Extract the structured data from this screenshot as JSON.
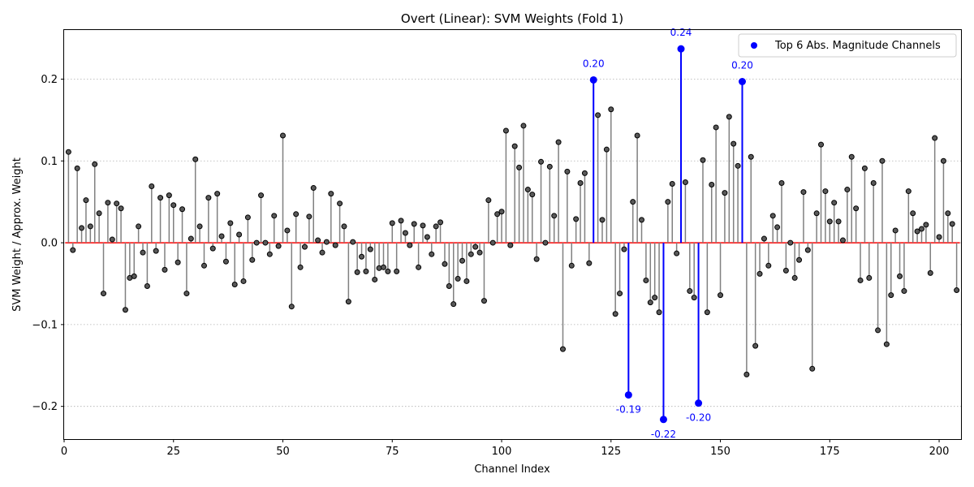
{
  "chart_data": {
    "type": "stem",
    "title": "Overt (Linear): SVM Weights (Fold 1)",
    "xlabel": "Channel Index",
    "ylabel": "SVM Weight / Approx. Weight",
    "xlim": [
      0,
      205
    ],
    "ylim": [
      -0.24,
      0.26
    ],
    "xticks": [
      0,
      25,
      50,
      75,
      100,
      125,
      150,
      175,
      200
    ],
    "yticks": [
      -0.2,
      -0.1,
      0.0,
      0.1,
      0.2
    ],
    "ytick_labels": [
      "−0.2",
      "−0.1",
      "0.0",
      "0.1",
      "0.2"
    ],
    "grid": "y-dotted",
    "legend_position": "top-right",
    "colors": {
      "stem": "#808080",
      "marker_face": "#595959",
      "baseline": "#ff0000",
      "highlight": "#0000ff",
      "grid": "#b0b0b0"
    },
    "legend": [
      {
        "label": "Top 6 Abs. Magnitude Channels",
        "color": "#0000ff"
      }
    ],
    "x": [
      1,
      2,
      3,
      4,
      5,
      6,
      7,
      8,
      9,
      10,
      11,
      12,
      13,
      14,
      15,
      16,
      17,
      18,
      19,
      20,
      21,
      22,
      23,
      24,
      25,
      26,
      27,
      28,
      29,
      30,
      31,
      32,
      33,
      34,
      35,
      36,
      37,
      38,
      39,
      40,
      41,
      42,
      43,
      44,
      45,
      46,
      47,
      48,
      49,
      50,
      51,
      52,
      53,
      54,
      55,
      56,
      57,
      58,
      59,
      60,
      61,
      62,
      63,
      64,
      65,
      66,
      67,
      68,
      69,
      70,
      71,
      72,
      73,
      74,
      75,
      76,
      77,
      78,
      79,
      80,
      81,
      82,
      83,
      84,
      85,
      86,
      87,
      88,
      89,
      90,
      91,
      92,
      93,
      94,
      95,
      96,
      97,
      98,
      99,
      100,
      101,
      102,
      103,
      104,
      105,
      106,
      107,
      108,
      109,
      110,
      111,
      112,
      113,
      114,
      115,
      116,
      117,
      118,
      119,
      120,
      121,
      122,
      123,
      124,
      125,
      126,
      127,
      128,
      129,
      130,
      131,
      132,
      133,
      134,
      135,
      136,
      137,
      138,
      139,
      140,
      141,
      142,
      143,
      144,
      145,
      146,
      147,
      148,
      149,
      150,
      151,
      152,
      153,
      154,
      155,
      156,
      157,
      158,
      159,
      160,
      161,
      162,
      163,
      164,
      165,
      166,
      167,
      168,
      169,
      170,
      171,
      172,
      173,
      174,
      175,
      176,
      177,
      178,
      179,
      180,
      181,
      182,
      183,
      184,
      185,
      186,
      187,
      188,
      189,
      190,
      191,
      192,
      193,
      194,
      195,
      196,
      197,
      198,
      199,
      200,
      201,
      202,
      203,
      204
    ],
    "values": [
      0.111,
      -0.009,
      0.091,
      0.018,
      0.052,
      0.02,
      0.096,
      0.036,
      -0.062,
      0.049,
      0.004,
      0.048,
      0.042,
      -0.082,
      -0.043,
      -0.041,
      0.02,
      -0.012,
      -0.053,
      0.069,
      -0.01,
      0.055,
      -0.033,
      0.058,
      0.046,
      -0.024,
      0.041,
      -0.062,
      0.005,
      0.102,
      0.02,
      -0.028,
      0.055,
      -0.007,
      0.06,
      0.008,
      -0.023,
      0.024,
      -0.051,
      0.01,
      -0.047,
      0.031,
      -0.021,
      0.0,
      0.058,
      0.0,
      -0.014,
      0.033,
      -0.004,
      0.131,
      0.015,
      -0.078,
      0.035,
      -0.03,
      -0.005,
      0.032,
      0.067,
      0.003,
      -0.012,
      0.001,
      0.06,
      -0.003,
      0.048,
      0.02,
      -0.072,
      0.001,
      -0.036,
      -0.017,
      -0.035,
      -0.008,
      -0.045,
      -0.031,
      -0.03,
      -0.035,
      0.024,
      -0.035,
      0.027,
      0.012,
      -0.003,
      0.023,
      -0.03,
      0.021,
      0.007,
      -0.014,
      0.02,
      0.025,
      -0.026,
      -0.053,
      -0.075,
      -0.044,
      -0.022,
      -0.047,
      -0.014,
      -0.005,
      -0.012,
      -0.071,
      0.052,
      0.0,
      0.035,
      0.038,
      0.137,
      -0.003,
      0.118,
      0.092,
      0.143,
      0.065,
      0.059,
      -0.02,
      0.099,
      0.0,
      0.093,
      0.033,
      0.123,
      -0.13,
      0.087,
      -0.028,
      0.029,
      0.073,
      0.085,
      -0.025,
      0.199,
      0.156,
      0.028,
      0.114,
      0.163,
      -0.087,
      -0.062,
      -0.008,
      -0.186,
      0.05,
      0.131,
      0.028,
      -0.046,
      -0.073,
      -0.067,
      -0.085,
      -0.216,
      0.05,
      0.072,
      -0.013,
      0.237,
      0.074,
      -0.059,
      -0.067,
      -0.196,
      0.101,
      -0.085,
      0.071,
      0.141,
      -0.064,
      0.061,
      0.154,
      0.121,
      0.094,
      0.197,
      -0.161,
      0.105,
      -0.126,
      -0.038,
      0.005,
      -0.028,
      0.033,
      0.019,
      0.073,
      -0.034,
      0.0,
      -0.043,
      -0.021,
      0.062,
      -0.009,
      -0.154,
      0.036,
      0.12,
      0.063,
      0.026,
      0.049,
      0.026,
      0.003,
      0.065,
      0.105,
      0.042,
      -0.046,
      0.091,
      -0.043,
      0.073,
      -0.107,
      0.1,
      -0.124,
      -0.064,
      0.015,
      -0.041,
      -0.059,
      0.063,
      0.036,
      0.014,
      0.017,
      0.022,
      -0.037,
      0.128,
      0.007,
      0.1,
      0.036,
      0.023,
      -0.058
    ],
    "highlight": {
      "name": "Top 6 Abs. Magnitude Channels",
      "x": [
        121,
        129,
        137,
        141,
        145,
        155
      ],
      "values": [
        0.199,
        -0.186,
        -0.216,
        0.237,
        -0.196,
        0.197
      ],
      "labels": [
        "0.20",
        "-0.19",
        "-0.22",
        "0.24",
        "-0.20",
        "0.20"
      ]
    }
  }
}
